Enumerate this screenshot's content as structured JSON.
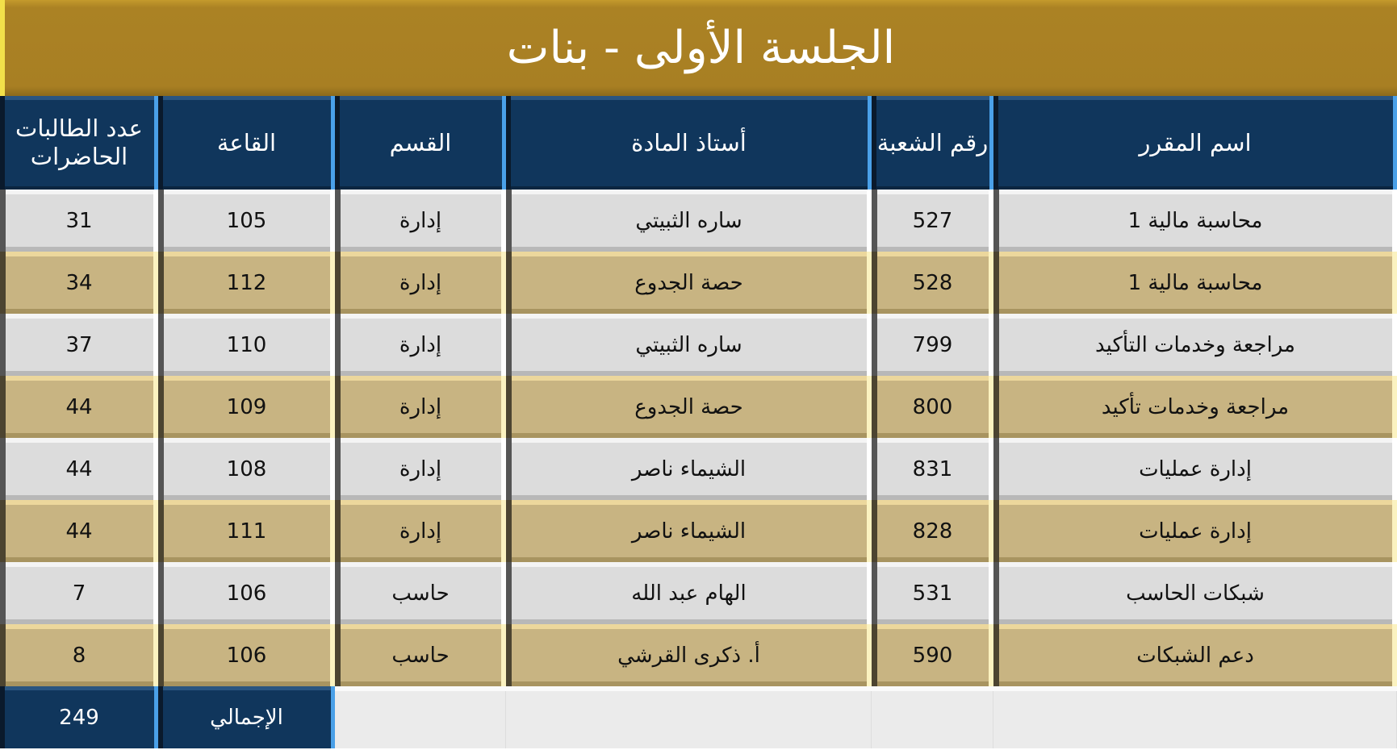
{
  "title": "الجلسة الأولى - بنات",
  "headers": [
    "اسم المقرر",
    "رقم الشعبة",
    "أستاذ المادة",
    "القسم",
    "القاعة",
    "عدد الطالبات الحاضرات"
  ],
  "rows": [
    [
      "محاسبة مالية 1",
      "527",
      "ساره الثبيتي",
      "إدارة",
      "105",
      "31"
    ],
    [
      "محاسبة مالية 1",
      "528",
      "حصة الجدوع",
      "إدارة",
      "112",
      "34"
    ],
    [
      "مراجعة وخدمات التأكيد",
      "799",
      "ساره الثبيتي",
      "إدارة",
      "110",
      "37"
    ],
    [
      "مراجعة وخدمات تأكيد",
      "800",
      "حصة الجدوع",
      "إدارة",
      "109",
      "44"
    ],
    [
      "إدارة عمليات",
      "831",
      "الشيماء ناصر",
      "إدارة",
      "108",
      "44"
    ],
    [
      "إدارة عمليات",
      "828",
      "الشيماء ناصر",
      "إدارة",
      "111",
      "44"
    ],
    [
      "شبكات الحاسب",
      "531",
      "الهام عبد الله",
      "حاسب",
      "106",
      "7"
    ],
    [
      "دعم الشبكات",
      "590",
      "أ. ذكرى القرشي",
      "حاسب",
      "106",
      "8"
    ]
  ],
  "total": {
    "label": "الإجمالي",
    "value": "249"
  },
  "colors": {
    "title_bg": "#a87f23",
    "header_bg": "#10365c",
    "row_light": "#dcdcdc",
    "row_gold": "#c8b482"
  }
}
